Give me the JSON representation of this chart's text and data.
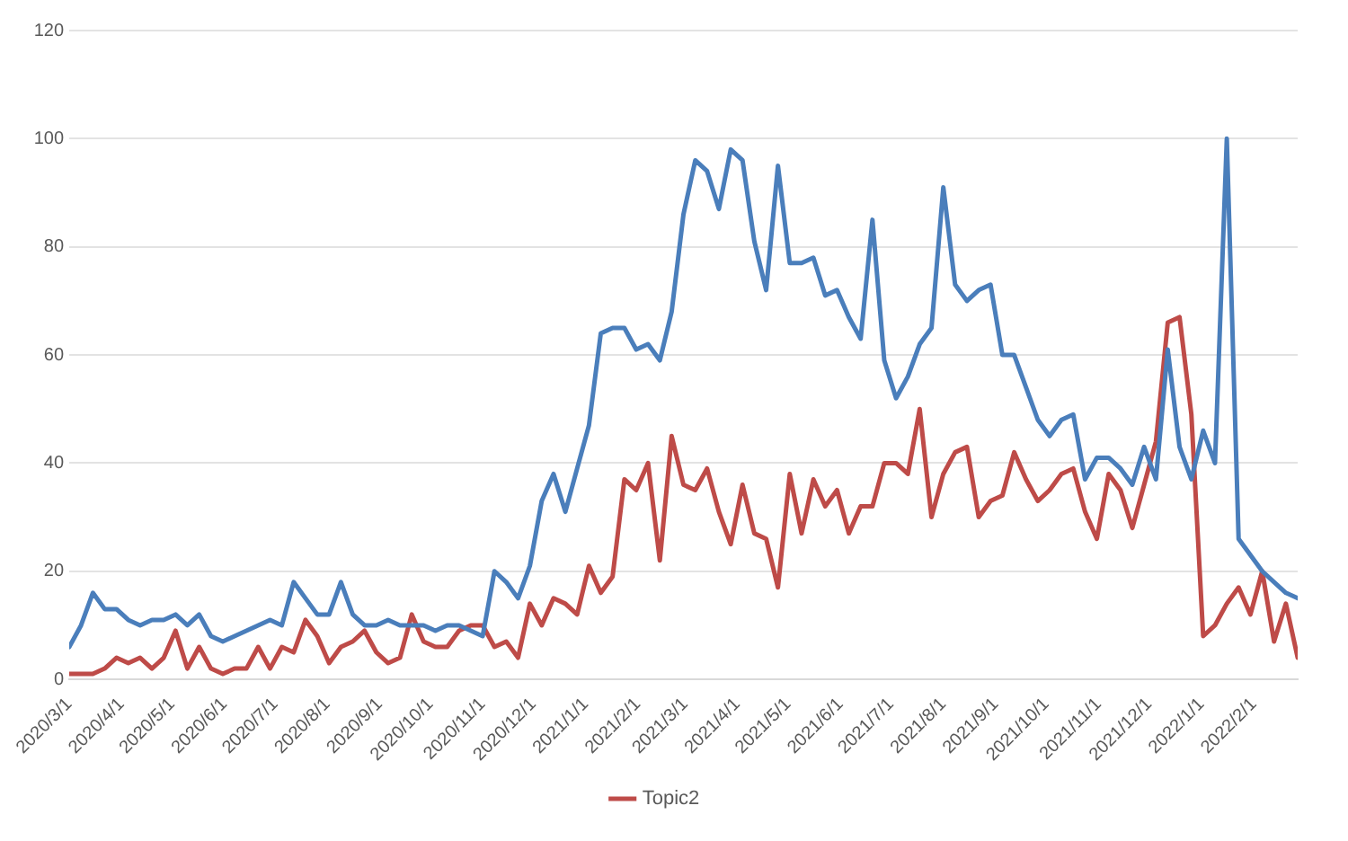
{
  "chart_data": {
    "type": "line",
    "x": [
      "2020-03-01",
      "2020-03-08",
      "2020-03-15",
      "2020-03-22",
      "2020-03-29",
      "2020-04-05",
      "2020-04-12",
      "2020-04-19",
      "2020-04-26",
      "2020-05-03",
      "2020-05-10",
      "2020-05-17",
      "2020-05-24",
      "2020-05-31",
      "2020-06-07",
      "2020-06-14",
      "2020-06-21",
      "2020-06-28",
      "2020-07-05",
      "2020-07-12",
      "2020-07-19",
      "2020-07-26",
      "2020-08-02",
      "2020-08-09",
      "2020-08-16",
      "2020-08-23",
      "2020-08-30",
      "2020-09-06",
      "2020-09-13",
      "2020-09-20",
      "2020-09-27",
      "2020-10-04",
      "2020-10-11",
      "2020-10-18",
      "2020-10-25",
      "2020-11-01",
      "2020-11-08",
      "2020-11-15",
      "2020-11-22",
      "2020-11-29",
      "2020-12-06",
      "2020-12-13",
      "2020-12-20",
      "2020-12-27",
      "2021-01-03",
      "2021-01-10",
      "2021-01-17",
      "2021-01-24",
      "2021-01-31",
      "2021-02-07",
      "2021-02-14",
      "2021-02-21",
      "2021-02-28",
      "2021-03-07",
      "2021-03-14",
      "2021-03-21",
      "2021-03-28",
      "2021-04-04",
      "2021-04-11",
      "2021-04-18",
      "2021-04-25",
      "2021-05-02",
      "2021-05-09",
      "2021-05-16",
      "2021-05-23",
      "2021-05-30",
      "2021-06-06",
      "2021-06-13",
      "2021-06-20",
      "2021-06-27",
      "2021-07-04",
      "2021-07-11",
      "2021-07-18",
      "2021-07-25",
      "2021-08-01",
      "2021-08-08",
      "2021-08-15",
      "2021-08-22",
      "2021-08-29",
      "2021-09-05",
      "2021-09-12",
      "2021-09-19",
      "2021-09-26",
      "2021-10-03",
      "2021-10-10",
      "2021-10-17",
      "2021-10-24",
      "2021-10-31",
      "2021-11-07",
      "2021-11-14",
      "2021-11-21",
      "2021-11-28",
      "2021-12-05",
      "2021-12-12",
      "2021-12-19",
      "2021-12-26",
      "2022-01-02",
      "2022-01-09",
      "2022-01-16",
      "2022-01-23",
      "2022-01-30",
      "2022-02-06",
      "2022-02-13",
      "2022-02-20",
      "2022-02-27"
    ],
    "series": [
      {
        "color": "#4a7ebb",
        "values": [
          6,
          10,
          16,
          13,
          13,
          11,
          10,
          11,
          11,
          12,
          10,
          12,
          8,
          7,
          8,
          9,
          10,
          11,
          10,
          18,
          15,
          12,
          12,
          18,
          12,
          10,
          10,
          11,
          10,
          10,
          10,
          9,
          10,
          10,
          9,
          8,
          20,
          18,
          15,
          21,
          33,
          38,
          31,
          39,
          47,
          64,
          65,
          65,
          61,
          62,
          59,
          68,
          86,
          96,
          94,
          87,
          98,
          96,
          81,
          72,
          95,
          77,
          77,
          78,
          71,
          72,
          67,
          63,
          85,
          59,
          52,
          56,
          62,
          65,
          91,
          73,
          70,
          72,
          73,
          60,
          60,
          54,
          48,
          45,
          48,
          49,
          37,
          41,
          41,
          39,
          36,
          43,
          37,
          61,
          43,
          37,
          46,
          40,
          100,
          26,
          23,
          20,
          18,
          16,
          15
        ]
      },
      {
        "name": "Topic2",
        "color": "#be4b48",
        "values": [
          1,
          1,
          1,
          2,
          4,
          3,
          4,
          2,
          4,
          9,
          2,
          6,
          2,
          1,
          2,
          2,
          6,
          2,
          6,
          5,
          11,
          8,
          3,
          6,
          7,
          9,
          5,
          3,
          4,
          12,
          7,
          6,
          6,
          9,
          10,
          10,
          6,
          7,
          4,
          14,
          10,
          15,
          14,
          12,
          21,
          16,
          19,
          37,
          35,
          40,
          22,
          45,
          36,
          35,
          39,
          31,
          25,
          36,
          27,
          26,
          17,
          38,
          27,
          37,
          32,
          35,
          27,
          32,
          32,
          40,
          40,
          38,
          50,
          30,
          38,
          42,
          43,
          30,
          33,
          34,
          42,
          37,
          33,
          35,
          38,
          39,
          31,
          26,
          38,
          35,
          28,
          36,
          44,
          66,
          67,
          49,
          8,
          10,
          14,
          17,
          12,
          20,
          7,
          14,
          4
        ]
      }
    ],
    "xlim": [
      "2020-03-01",
      "2022-02-27"
    ],
    "xticks": [
      {
        "value": "2020-03-01",
        "label": "2020/3/1"
      },
      {
        "value": "2020-04-01",
        "label": "2020/4/1"
      },
      {
        "value": "2020-05-01",
        "label": "2020/5/1"
      },
      {
        "value": "2020-06-01",
        "label": "2020/6/1"
      },
      {
        "value": "2020-07-01",
        "label": "2020/7/1"
      },
      {
        "value": "2020-08-01",
        "label": "2020/8/1"
      },
      {
        "value": "2020-09-01",
        "label": "2020/9/1"
      },
      {
        "value": "2020-10-01",
        "label": "2020/10/1"
      },
      {
        "value": "2020-11-01",
        "label": "2020/11/1"
      },
      {
        "value": "2020-12-01",
        "label": "2020/12/1"
      },
      {
        "value": "2021-01-01",
        "label": "2021/1/1"
      },
      {
        "value": "2021-02-01",
        "label": "2021/2/1"
      },
      {
        "value": "2021-03-01",
        "label": "2021/3/1"
      },
      {
        "value": "2021-04-01",
        "label": "2021/4/1"
      },
      {
        "value": "2021-05-01",
        "label": "2021/5/1"
      },
      {
        "value": "2021-06-01",
        "label": "2021/6/1"
      },
      {
        "value": "2021-07-01",
        "label": "2021/7/1"
      },
      {
        "value": "2021-08-01",
        "label": "2021/8/1"
      },
      {
        "value": "2021-09-01",
        "label": "2021/9/1"
      },
      {
        "value": "2021-10-01",
        "label": "2021/10/1"
      },
      {
        "value": "2021-11-01",
        "label": "2021/11/1"
      },
      {
        "value": "2021-12-01",
        "label": "2021/12/1"
      },
      {
        "value": "2022-01-01",
        "label": "2022/1/1"
      },
      {
        "value": "2022-02-01",
        "label": "2022/2/1"
      }
    ],
    "ylim": [
      0,
      120
    ],
    "yticks": [
      0,
      20,
      40,
      60,
      80,
      100,
      120
    ],
    "grid": "y",
    "legend": "bottom",
    "marker": "none",
    "line_style": "solid"
  }
}
